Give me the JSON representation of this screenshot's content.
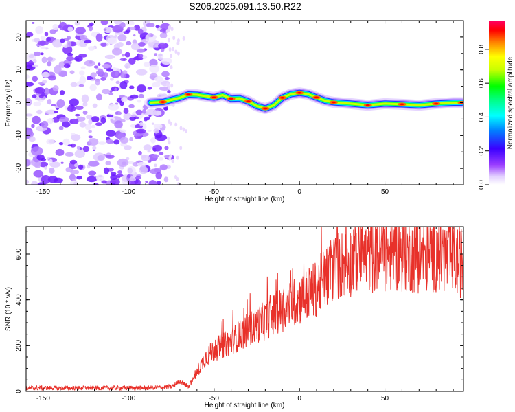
{
  "figure": {
    "title": "S206.2025.091.13.50.R22"
  },
  "chart_data": [
    {
      "type": "heatmap",
      "title": "S206.2025.091.13.50.R22",
      "xlabel": "Height of straight line (km)",
      "ylabel": "Frequency (Hz)",
      "xlim": [
        -160,
        96
      ],
      "ylim": [
        -25,
        25
      ],
      "x_ticks": [
        -150,
        -100,
        -50,
        0,
        50
      ],
      "y_ticks": [
        -20,
        -10,
        0,
        10,
        20
      ],
      "colorbar": {
        "label": "Normalized spectral amplitude",
        "range": [
          0,
          0.97
        ],
        "ticks": [
          0.0,
          0.2,
          0.4,
          0.6,
          0.8
        ],
        "colormap": "rainbow (purple → blue → cyan → green → yellow → red → magenta)"
      },
      "noise_region_km": [
        -160,
        -80
      ],
      "signal_trace": {
        "description": "Dominant spectral ridge frequency vs. height",
        "x": [
          -87,
          -80,
          -70,
          -65,
          -60,
          -50,
          -45,
          -40,
          -35,
          -30,
          -25,
          -20,
          -15,
          -10,
          -5,
          0,
          5,
          10,
          15,
          20,
          30,
          40,
          50,
          60,
          70,
          80,
          90,
          95
        ],
        "y": [
          0,
          0.2,
          1.5,
          2.5,
          2.4,
          1.6,
          2.3,
          1.2,
          1.3,
          0.4,
          -1,
          -1.8,
          -0.8,
          1.5,
          2.6,
          3,
          2.6,
          1.6,
          0.6,
          0.1,
          -0.3,
          -0.8,
          -0.3,
          -0.5,
          -0.8,
          -0.3,
          0,
          0
        ]
      }
    },
    {
      "type": "line",
      "title": "",
      "xlabel": "Height of straight line (km)",
      "ylabel": "SNR (10 * v/v)",
      "xlim": [
        -160,
        96
      ],
      "ylim": [
        0,
        720
      ],
      "x_ticks": [
        -150,
        -100,
        -50,
        0,
        50
      ],
      "y_ticks": [
        0,
        200,
        400,
        600
      ],
      "color": "#e8312a",
      "series": [
        {
          "name": "",
          "envelope_x": [
            -160,
            -90,
            -75,
            -70,
            -65,
            -60,
            -55,
            -50,
            -40,
            -30,
            -20,
            -10,
            0,
            10,
            20,
            30,
            40,
            50,
            60,
            70,
            80,
            96
          ],
          "envelope_y": [
            15,
            15,
            20,
            45,
            20,
            80,
            150,
            180,
            220,
            270,
            310,
            360,
            400,
            450,
            540,
            570,
            590,
            600,
            600,
            590,
            600,
            560
          ]
        }
      ]
    }
  ]
}
